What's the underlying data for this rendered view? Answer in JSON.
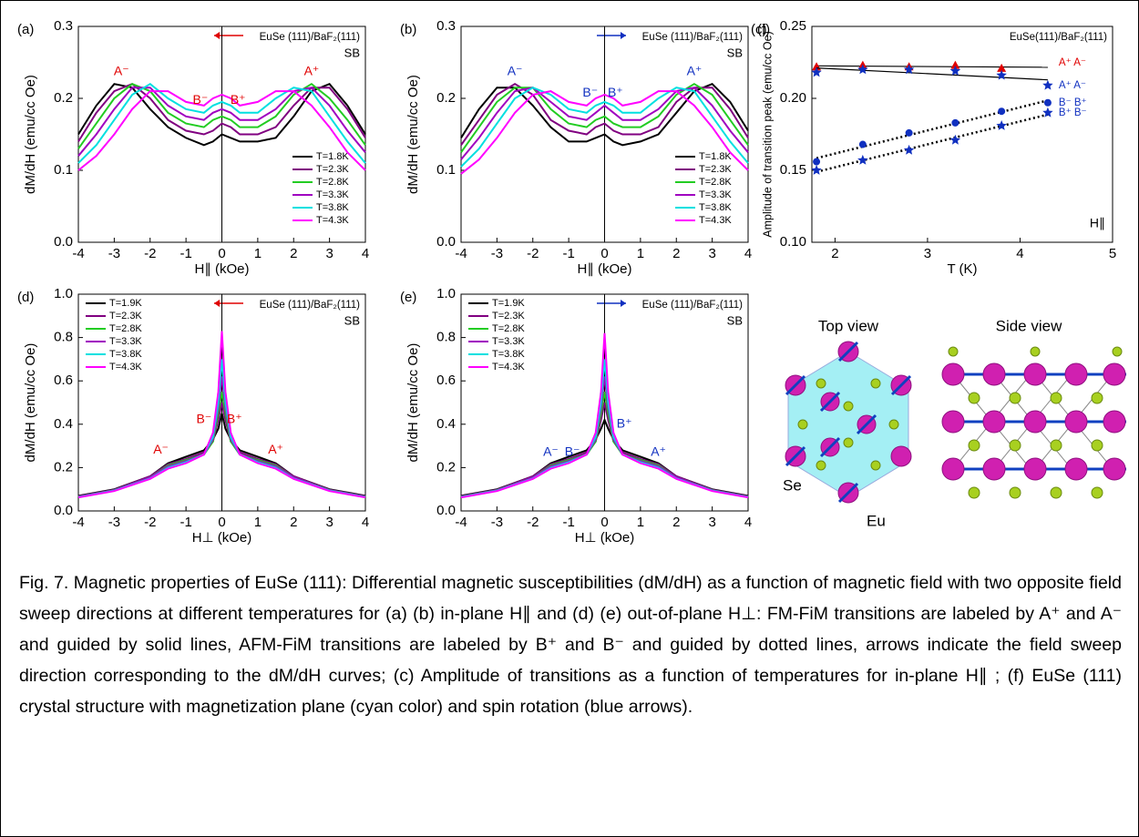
{
  "chart_data": [
    {
      "type": "line",
      "panel": "(a)",
      "sample": "EuSe (111)/BaF₂(111)",
      "tag": "SB",
      "arrow_color": "#e00000",
      "arrow_dir": "left",
      "xlabel": "H∥ (kOe)",
      "ylabel": "dM/dH (emu/cc Oe)",
      "xlim": [
        -4,
        4
      ],
      "xticks": [
        -4,
        -3,
        -2,
        -1,
        0,
        1,
        2,
        3,
        4
      ],
      "ylim": [
        0,
        0.3
      ],
      "yticks": [
        {
          "value": 0,
          "label": "0.0"
        },
        0.1,
        0.2,
        0.3
      ],
      "legend": "lower right",
      "x": [
        -4,
        -3.5,
        -3,
        -2.5,
        -2,
        -1.5,
        -1,
        -0.5,
        -0.25,
        0,
        0.25,
        0.5,
        1,
        1.5,
        2,
        2.5,
        3,
        3.5,
        4
      ],
      "series": [
        {
          "name": "T=1.8K",
          "color": "#000000",
          "values": [
            0.15,
            0.19,
            0.22,
            0.215,
            0.185,
            0.16,
            0.145,
            0.135,
            0.14,
            0.15,
            0.145,
            0.14,
            0.14,
            0.145,
            0.175,
            0.21,
            0.22,
            0.19,
            0.15
          ]
        },
        {
          "name": "T=2.3K",
          "color": "#800080",
          "values": [
            0.14,
            0.18,
            0.21,
            0.22,
            0.2,
            0.17,
            0.155,
            0.15,
            0.155,
            0.165,
            0.16,
            0.15,
            0.15,
            0.16,
            0.19,
            0.215,
            0.215,
            0.185,
            0.145
          ]
        },
        {
          "name": "T=2.8K",
          "color": "#22cc22",
          "values": [
            0.13,
            0.165,
            0.2,
            0.22,
            0.21,
            0.18,
            0.165,
            0.16,
            0.17,
            0.175,
            0.17,
            0.16,
            0.16,
            0.175,
            0.205,
            0.22,
            0.2,
            0.17,
            0.135
          ]
        },
        {
          "name": "T=3.3K",
          "color": "#a000c0",
          "values": [
            0.12,
            0.15,
            0.185,
            0.215,
            0.215,
            0.19,
            0.175,
            0.17,
            0.18,
            0.185,
            0.18,
            0.17,
            0.17,
            0.185,
            0.21,
            0.215,
            0.19,
            0.155,
            0.125
          ]
        },
        {
          "name": "T=3.8K",
          "color": "#00e0e0",
          "values": [
            0.11,
            0.135,
            0.17,
            0.205,
            0.22,
            0.2,
            0.185,
            0.18,
            0.19,
            0.195,
            0.19,
            0.18,
            0.18,
            0.2,
            0.215,
            0.21,
            0.175,
            0.14,
            0.11
          ]
        },
        {
          "name": "T=4.3K",
          "color": "#ff00ff",
          "values": [
            0.1,
            0.12,
            0.15,
            0.185,
            0.21,
            0.21,
            0.195,
            0.19,
            0.2,
            0.205,
            0.2,
            0.19,
            0.195,
            0.21,
            0.21,
            0.19,
            0.16,
            0.125,
            0.1
          ]
        }
      ],
      "annotations": [
        {
          "text": "A⁻",
          "x": -2.8,
          "y": 0.237,
          "color": "#e00000"
        },
        {
          "text": "B⁻",
          "x": -0.6,
          "y": 0.197,
          "color": "#e00000"
        },
        {
          "text": "B⁺",
          "x": 0.45,
          "y": 0.197,
          "color": "#e00000"
        },
        {
          "text": "A⁺",
          "x": 2.5,
          "y": 0.237,
          "color": "#e00000"
        }
      ]
    },
    {
      "type": "line",
      "panel": "(b)",
      "sample": "EuSe (111)/BaF₂(111)",
      "tag": "SB",
      "arrow_color": "#1030c0",
      "arrow_dir": "right",
      "xlabel": "H∥ (kOe)",
      "ylabel": "dM/dH (emu/cc Oe)",
      "xlim": [
        -4,
        4
      ],
      "xticks": [
        -4,
        -3,
        -2,
        -1,
        0,
        1,
        2,
        3,
        4
      ],
      "ylim": [
        0,
        0.3
      ],
      "yticks": [
        {
          "value": 0,
          "label": "0.0"
        },
        0.1,
        0.2,
        0.3
      ],
      "legend": "lower right",
      "x": [
        -4,
        -3.5,
        -3,
        -2.5,
        -2,
        -1.5,
        -1,
        -0.5,
        -0.25,
        0,
        0.25,
        0.5,
        1,
        1.5,
        2,
        2.5,
        3,
        3.5,
        4
      ],
      "series": [
        {
          "name": "T=1.8K",
          "color": "#000000",
          "values": [
            0.145,
            0.185,
            0.215,
            0.215,
            0.19,
            0.16,
            0.14,
            0.14,
            0.145,
            0.15,
            0.14,
            0.135,
            0.14,
            0.15,
            0.18,
            0.21,
            0.22,
            0.195,
            0.155
          ]
        },
        {
          "name": "T=2.3K",
          "color": "#800080",
          "values": [
            0.135,
            0.17,
            0.205,
            0.22,
            0.205,
            0.17,
            0.155,
            0.15,
            0.16,
            0.165,
            0.155,
            0.15,
            0.15,
            0.16,
            0.195,
            0.215,
            0.215,
            0.185,
            0.145
          ]
        },
        {
          "name": "T=2.8K",
          "color": "#22cc22",
          "values": [
            0.125,
            0.16,
            0.195,
            0.215,
            0.215,
            0.185,
            0.165,
            0.16,
            0.17,
            0.175,
            0.165,
            0.16,
            0.16,
            0.175,
            0.205,
            0.22,
            0.205,
            0.17,
            0.135
          ]
        },
        {
          "name": "T=3.3K",
          "color": "#a000c0",
          "values": [
            0.115,
            0.145,
            0.18,
            0.21,
            0.215,
            0.195,
            0.175,
            0.17,
            0.18,
            0.19,
            0.18,
            0.17,
            0.17,
            0.185,
            0.21,
            0.215,
            0.19,
            0.155,
            0.125
          ]
        },
        {
          "name": "T=3.8K",
          "color": "#00e0e0",
          "values": [
            0.105,
            0.13,
            0.165,
            0.2,
            0.215,
            0.205,
            0.185,
            0.18,
            0.19,
            0.195,
            0.19,
            0.18,
            0.18,
            0.2,
            0.215,
            0.21,
            0.175,
            0.14,
            0.11
          ]
        },
        {
          "name": "T=4.3K",
          "color": "#ff00ff",
          "values": [
            0.095,
            0.115,
            0.145,
            0.18,
            0.205,
            0.21,
            0.195,
            0.19,
            0.2,
            0.205,
            0.2,
            0.19,
            0.195,
            0.21,
            0.21,
            0.19,
            0.16,
            0.125,
            0.1
          ]
        }
      ],
      "annotations": [
        {
          "text": "A⁻",
          "x": -2.5,
          "y": 0.237,
          "color": "#1030c0"
        },
        {
          "text": "B⁻",
          "x": -0.4,
          "y": 0.207,
          "color": "#1030c0"
        },
        {
          "text": "B⁺",
          "x": 0.3,
          "y": 0.207,
          "color": "#1030c0"
        },
        {
          "text": "A⁺",
          "x": 2.5,
          "y": 0.237,
          "color": "#1030c0"
        }
      ]
    },
    {
      "type": "scatter",
      "panel": "(c)",
      "sample": "EuSe(111)/BaF₂(111)",
      "tag": "H∥",
      "xlabel": "T (K)",
      "ylabel": "Amplitude of transition peak (emu/cc Oe)",
      "xlim": [
        1.75,
        5
      ],
      "xticks": [
        2,
        3,
        4,
        5
      ],
      "ylim": [
        0.1,
        0.25
      ],
      "yticks": [
        {
          "value": 0.1,
          "label": "0.10"
        },
        0.15,
        {
          "value": 0.2,
          "label": "0.20"
        },
        0.25
      ],
      "x": [
        1.8,
        2.3,
        2.8,
        3.3,
        3.8,
        4.3
      ],
      "series": [
        {
          "name": "A⁺ A⁻",
          "color": "#e00000",
          "marker": "triangle",
          "fit": "solid",
          "values": [
            0.222,
            0.223,
            0.222,
            0.223,
            0.221,
            null
          ]
        },
        {
          "name": "A⁺ A⁻",
          "color": "#1030c0",
          "marker": "star",
          "fit": "solid",
          "values": [
            0.218,
            0.22,
            0.22,
            0.219,
            0.216,
            0.209
          ]
        },
        {
          "name": "B⁻ B⁺",
          "color": "#1030c0",
          "marker": "circle",
          "fit": "dotted",
          "values": [
            0.156,
            0.168,
            0.176,
            0.183,
            0.191,
            0.197
          ]
        },
        {
          "name": "B⁺ B⁻",
          "color": "#1030c0",
          "marker": "star",
          "fit": "dotted",
          "values": [
            0.15,
            0.157,
            0.164,
            0.171,
            0.181,
            0.19
          ]
        }
      ]
    },
    {
      "type": "line",
      "panel": "(d)",
      "sample": "EuSe (111)/BaF₂(111)",
      "tag": "SB",
      "arrow_color": "#e00000",
      "arrow_dir": "left",
      "xlabel": "H⊥ (kOe)",
      "ylabel": "dM/dH (emu/cc Oe)",
      "xlim": [
        -4,
        4
      ],
      "xticks": [
        -4,
        -3,
        -2,
        -1,
        0,
        1,
        2,
        3,
        4
      ],
      "ylim": [
        0,
        1
      ],
      "yticks": [
        {
          "value": 0,
          "label": "0.0"
        },
        0.2,
        0.4,
        0.6,
        0.8,
        {
          "value": 1,
          "label": "1.0"
        }
      ],
      "legend": "upper left",
      "x": [
        -4,
        -3,
        -2,
        -1.5,
        -1,
        -0.5,
        -0.25,
        -0.1,
        0,
        0.1,
        0.25,
        0.5,
        1,
        1.5,
        2,
        3,
        4
      ],
      "series": [
        {
          "name": "T=1.9K",
          "color": "#000000",
          "values": [
            0.07,
            0.1,
            0.16,
            0.22,
            0.25,
            0.28,
            0.33,
            0.38,
            0.45,
            0.38,
            0.33,
            0.28,
            0.25,
            0.22,
            0.16,
            0.1,
            0.07
          ]
        },
        {
          "name": "T=2.3K",
          "color": "#800080",
          "values": [
            0.068,
            0.098,
            0.16,
            0.215,
            0.24,
            0.27,
            0.32,
            0.42,
            0.5,
            0.42,
            0.32,
            0.27,
            0.24,
            0.215,
            0.16,
            0.098,
            0.068
          ]
        },
        {
          "name": "T=2.8K",
          "color": "#22cc22",
          "values": [
            0.066,
            0.096,
            0.155,
            0.21,
            0.235,
            0.26,
            0.32,
            0.45,
            0.55,
            0.45,
            0.32,
            0.26,
            0.235,
            0.21,
            0.155,
            0.096,
            0.066
          ]
        },
        {
          "name": "T=3.3K",
          "color": "#a000c0",
          "values": [
            0.065,
            0.095,
            0.155,
            0.205,
            0.23,
            0.26,
            0.33,
            0.48,
            0.62,
            0.48,
            0.33,
            0.26,
            0.23,
            0.205,
            0.155,
            0.095,
            0.065
          ]
        },
        {
          "name": "T=3.8K",
          "color": "#00e0e0",
          "values": [
            0.064,
            0.094,
            0.15,
            0.2,
            0.225,
            0.26,
            0.34,
            0.5,
            0.7,
            0.5,
            0.34,
            0.26,
            0.225,
            0.2,
            0.15,
            0.094,
            0.064
          ]
        },
        {
          "name": "T=4.3K",
          "color": "#ff00ff",
          "values": [
            0.062,
            0.092,
            0.148,
            0.195,
            0.22,
            0.26,
            0.36,
            0.55,
            0.83,
            0.55,
            0.36,
            0.26,
            0.22,
            0.195,
            0.148,
            0.092,
            0.062
          ]
        }
      ],
      "annotations": [
        {
          "text": "A⁻",
          "x": -1.7,
          "y": 0.28,
          "color": "#e00000"
        },
        {
          "text": "B⁻",
          "x": -0.5,
          "y": 0.42,
          "color": "#e00000"
        },
        {
          "text": "B⁺",
          "x": 0.35,
          "y": 0.42,
          "color": "#e00000"
        },
        {
          "text": "A⁺",
          "x": 1.5,
          "y": 0.28,
          "color": "#e00000"
        }
      ]
    },
    {
      "type": "line",
      "panel": "(e)",
      "sample": "EuSe (111)/BaF₂(111)",
      "tag": "SB",
      "arrow_color": "#1030c0",
      "arrow_dir": "right",
      "xlabel": "H⊥ (kOe)",
      "ylabel": "dM/dH (emu/cc Oe)",
      "xlim": [
        -4,
        4
      ],
      "xticks": [
        -4,
        -3,
        -2,
        -1,
        0,
        1,
        2,
        3,
        4
      ],
      "ylim": [
        0,
        1
      ],
      "yticks": [
        {
          "value": 0,
          "label": "0.0"
        },
        0.2,
        0.4,
        0.6,
        0.8,
        {
          "value": 1,
          "label": "1.0"
        }
      ],
      "legend": "upper left",
      "x": [
        -4,
        -3,
        -2,
        -1.5,
        -1,
        -0.5,
        -0.25,
        -0.1,
        0,
        0.1,
        0.25,
        0.5,
        1,
        1.5,
        2,
        3,
        4
      ],
      "series": [
        {
          "name": "T=1.9K",
          "color": "#000000",
          "values": [
            0.07,
            0.1,
            0.16,
            0.22,
            0.25,
            0.28,
            0.33,
            0.38,
            0.42,
            0.38,
            0.33,
            0.28,
            0.25,
            0.22,
            0.16,
            0.1,
            0.07
          ]
        },
        {
          "name": "T=2.3K",
          "color": "#800080",
          "values": [
            0.068,
            0.098,
            0.16,
            0.215,
            0.24,
            0.27,
            0.32,
            0.42,
            0.5,
            0.42,
            0.32,
            0.27,
            0.24,
            0.215,
            0.16,
            0.098,
            0.068
          ]
        },
        {
          "name": "T=2.8K",
          "color": "#22cc22",
          "values": [
            0.066,
            0.096,
            0.155,
            0.21,
            0.235,
            0.26,
            0.32,
            0.45,
            0.55,
            0.45,
            0.32,
            0.26,
            0.235,
            0.21,
            0.155,
            0.096,
            0.066
          ]
        },
        {
          "name": "T=3.3K",
          "color": "#a000c0",
          "values": [
            0.065,
            0.095,
            0.155,
            0.205,
            0.23,
            0.26,
            0.33,
            0.48,
            0.62,
            0.48,
            0.33,
            0.26,
            0.23,
            0.205,
            0.155,
            0.095,
            0.065
          ]
        },
        {
          "name": "T=3.8K",
          "color": "#00e0e0",
          "values": [
            0.064,
            0.094,
            0.15,
            0.2,
            0.225,
            0.26,
            0.34,
            0.5,
            0.7,
            0.5,
            0.34,
            0.26,
            0.225,
            0.2,
            0.15,
            0.094,
            0.064
          ]
        },
        {
          "name": "T=4.3K",
          "color": "#ff00ff",
          "values": [
            0.062,
            0.092,
            0.148,
            0.195,
            0.22,
            0.26,
            0.36,
            0.55,
            0.82,
            0.55,
            0.36,
            0.26,
            0.22,
            0.195,
            0.148,
            0.092,
            0.062
          ]
        }
      ],
      "annotations": [
        {
          "text": "A⁻",
          "x": -1.5,
          "y": 0.27,
          "color": "#1030c0"
        },
        {
          "text": "B⁻",
          "x": -0.9,
          "y": 0.27,
          "color": "#1030c0"
        },
        {
          "text": "B⁺",
          "x": 0.55,
          "y": 0.4,
          "color": "#1030c0"
        },
        {
          "text": "A⁺",
          "x": 1.5,
          "y": 0.27,
          "color": "#1030c0"
        }
      ]
    }
  ],
  "structure": {
    "panel": "(f)",
    "top_title": "Top view",
    "side_title": "Side view",
    "se_label": "Se",
    "eu_label": "Eu"
  },
  "caption": "Fig. 7. Magnetic properties of EuSe (111): Differential magnetic susceptibilities (dM/dH) as a function of magnetic field with two opposite field sweep directions at different temperatures for (a) (b) in-plane H∥ and (d) (e) out-of-plane H⊥: FM-FiM transitions are labeled by A⁺ and A⁻ and guided by solid lines, AFM-FiM transitions are labeled by B⁺ and B⁻ and guided by dotted lines, arrows indicate the field sweep direction corresponding to the dM/dH curves; (c) Amplitude of transitions as a function of temperatures for in-plane H∥ ; (f) EuSe (111) crystal structure with magnetization plane (cyan color) and spin rotation (blue arrows)."
}
